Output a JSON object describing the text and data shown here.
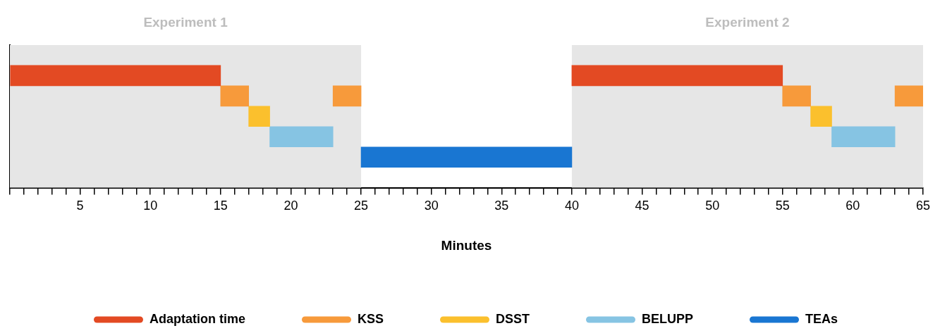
{
  "chart_data": {
    "type": "bar",
    "orientation": "horizontal",
    "xlabel": "Minutes",
    "categories": [
      null,
      null,
      null,
      null,
      null,
      null,
      null
    ],
    "series": [
      {
        "name": "Adaptation time",
        "color": "#e34a23",
        "values": [
          null,
          15,
          null,
          null,
          null,
          null,
          null
        ],
        "base": [
          null,
          0,
          null,
          null,
          null,
          null,
          null
        ]
      },
      {
        "color": "#e34a23",
        "values": [
          null,
          15,
          null,
          null,
          null,
          null,
          null
        ],
        "base": [
          null,
          40,
          null,
          null,
          null,
          null,
          null
        ]
      },
      {
        "name": "KSS",
        "color": "#f79a3b",
        "values": [
          null,
          null,
          2,
          null,
          null,
          null,
          null
        ],
        "base": [
          null,
          null,
          15,
          null,
          null,
          null,
          null
        ]
      },
      {
        "color": "#f79a3b",
        "values": [
          null,
          null,
          2,
          null,
          null,
          null,
          null
        ],
        "base": [
          null,
          null,
          23,
          null,
          null,
          null,
          null
        ]
      },
      {
        "color": "#f79a3b",
        "values": [
          null,
          null,
          2,
          null,
          null,
          null,
          null
        ],
        "base": [
          null,
          null,
          55,
          null,
          null,
          null,
          null
        ]
      },
      {
        "color": "#f79a3b",
        "values": [
          null,
          null,
          2,
          null,
          null,
          null,
          null
        ],
        "base": [
          null,
          null,
          63,
          null,
          null,
          null,
          null
        ]
      },
      {
        "name": "DSST",
        "color": "#fbc02d",
        "values": [
          null,
          null,
          null,
          1.5,
          null,
          null,
          null
        ],
        "base": [
          null,
          null,
          null,
          17,
          null,
          null,
          null
        ]
      },
      {
        "color": "#fbc02d",
        "values": [
          null,
          null,
          null,
          1.5,
          null,
          null,
          null
        ],
        "base": [
          null,
          null,
          null,
          57,
          null,
          null,
          null
        ]
      },
      {
        "name": "BELUPP",
        "color": "#86c4e3",
        "values": [
          null,
          null,
          null,
          null,
          4.5,
          null,
          null
        ],
        "base": [
          null,
          null,
          null,
          null,
          18.5,
          null,
          null
        ]
      },
      {
        "color": "#86c4e3",
        "values": [
          null,
          null,
          null,
          null,
          4.5,
          null,
          null
        ],
        "base": [
          null,
          null,
          null,
          null,
          58.5,
          null,
          null
        ]
      },
      {
        "name": "TEAs",
        "color": "#1976d2",
        "values": [
          null,
          null,
          null,
          null,
          null,
          15,
          null
        ],
        "base": [
          null,
          null,
          null,
          null,
          null,
          25,
          null
        ]
      }
    ],
    "xlim": [
      0,
      65
    ],
    "xticks": [
      {
        "value": 0,
        "label": null
      },
      {
        "value": 1,
        "label": null
      },
      {
        "value": 2,
        "label": null
      },
      {
        "value": 3,
        "label": null
      },
      {
        "value": 4,
        "label": null
      },
      5,
      {
        "value": 6,
        "label": null
      },
      {
        "value": 7,
        "label": null
      },
      {
        "value": 8,
        "label": null
      },
      {
        "value": 9,
        "label": null
      },
      10,
      {
        "value": 11,
        "label": null
      },
      {
        "value": 12,
        "label": null
      },
      {
        "value": 13,
        "label": null
      },
      {
        "value": 14,
        "label": null
      },
      15,
      {
        "value": 16,
        "label": null
      },
      {
        "value": 17,
        "label": null
      },
      {
        "value": 18,
        "label": null
      },
      {
        "value": 19,
        "label": null
      },
      20,
      {
        "value": 21,
        "label": null
      },
      {
        "value": 22,
        "label": null
      },
      {
        "value": 23,
        "label": null
      },
      {
        "value": 24,
        "label": null
      },
      25,
      {
        "value": 26,
        "label": null
      },
      {
        "value": 27,
        "label": null
      },
      {
        "value": 28,
        "label": null
      },
      {
        "value": 29,
        "label": null
      },
      30,
      {
        "value": 31,
        "label": null
      },
      {
        "value": 32,
        "label": null
      },
      {
        "value": 33,
        "label": null
      },
      {
        "value": 34,
        "label": null
      },
      35,
      {
        "value": 36,
        "label": null
      },
      {
        "value": 37,
        "label": null
      },
      {
        "value": 38,
        "label": null
      },
      {
        "value": 39,
        "label": null
      },
      40,
      {
        "value": 41,
        "label": null
      },
      {
        "value": 42,
        "label": null
      },
      {
        "value": 43,
        "label": null
      },
      {
        "value": 44,
        "label": null
      },
      45,
      {
        "value": 46,
        "label": null
      },
      {
        "value": 47,
        "label": null
      },
      {
        "value": 48,
        "label": null
      },
      {
        "value": 49,
        "label": null
      },
      50,
      {
        "value": 51,
        "label": null
      },
      {
        "value": 52,
        "label": null
      },
      {
        "value": 53,
        "label": null
      },
      {
        "value": 54,
        "label": null
      },
      55,
      {
        "value": 56,
        "label": null
      },
      {
        "value": 57,
        "label": null
      },
      {
        "value": 58,
        "label": null
      },
      {
        "value": 59,
        "label": null
      },
      60,
      {
        "value": 61,
        "label": null
      },
      {
        "value": 62,
        "label": null
      },
      {
        "value": 63,
        "label": null
      },
      {
        "value": 64,
        "label": null
      },
      65
    ],
    "bands": [
      {
        "axis": "x",
        "from": 0,
        "to": 25,
        "label": "Experiment 1",
        "color": "#e6e6e6"
      },
      {
        "axis": "x",
        "from": 40,
        "to": 65,
        "label": "Experiment 2",
        "color": "#e6e6e6"
      }
    ],
    "grid": false,
    "legend": "bottom",
    "tick_labels": "x"
  }
}
